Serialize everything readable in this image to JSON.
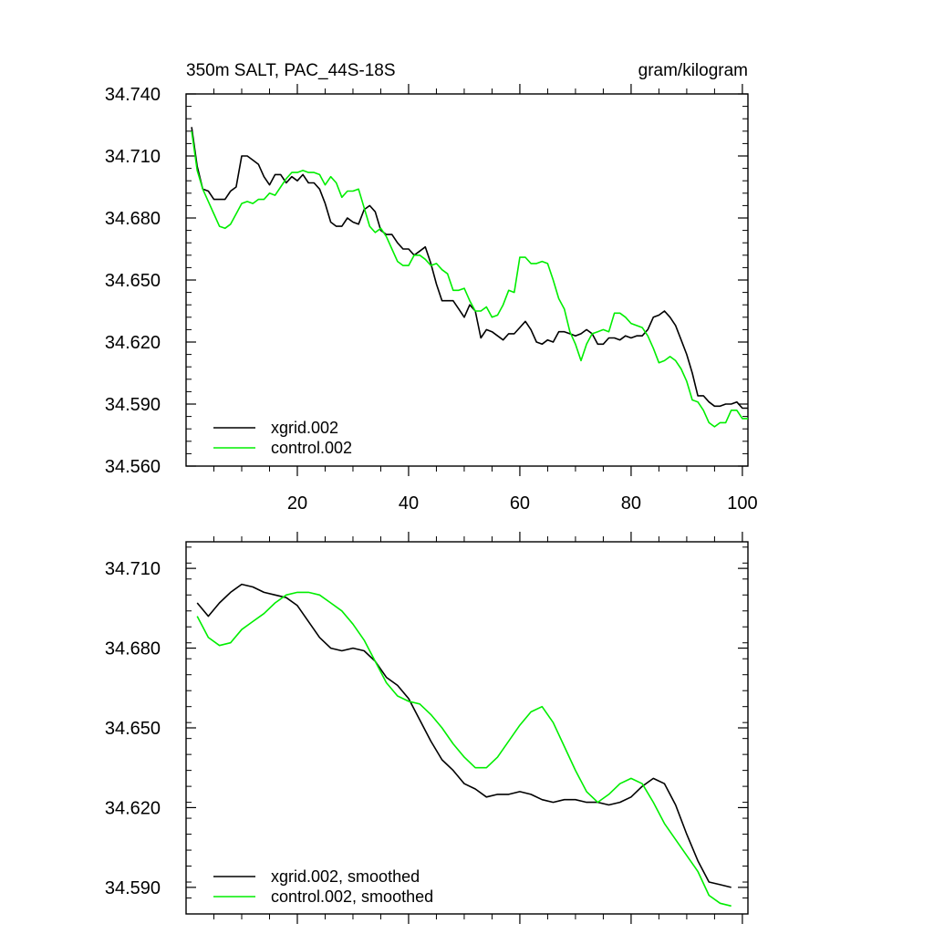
{
  "chart_data": [
    {
      "type": "line",
      "title": "350m SALT, PAC_44S-18S",
      "units": "gram/kilogram",
      "xlabel": "",
      "ylabel": "",
      "xlim": [
        0,
        101
      ],
      "ylim": [
        34.56,
        34.74
      ],
      "xticks": [
        20,
        40,
        60,
        80,
        100
      ],
      "yticks": [
        34.56,
        34.59,
        34.62,
        34.65,
        34.68,
        34.71,
        34.74
      ],
      "ytick_labels": [
        "34.560",
        "34.590",
        "34.620",
        "34.650",
        "34.680",
        "34.710",
        "34.740"
      ],
      "legend_position": "bottom-left",
      "series": [
        {
          "name": "xgrid.002",
          "color": "#000000",
          "x": [
            1,
            2,
            3,
            4,
            5,
            6,
            7,
            8,
            9,
            10,
            11,
            12,
            13,
            14,
            15,
            16,
            17,
            18,
            19,
            20,
            21,
            22,
            23,
            24,
            25,
            26,
            27,
            28,
            29,
            30,
            31,
            32,
            33,
            34,
            35,
            36,
            37,
            38,
            39,
            40,
            41,
            42,
            43,
            44,
            45,
            46,
            47,
            48,
            49,
            50,
            51,
            52,
            53,
            54,
            55,
            56,
            57,
            58,
            59,
            60,
            61,
            62,
            63,
            64,
            65,
            66,
            67,
            68,
            69,
            70,
            71,
            72,
            73,
            74,
            75,
            76,
            77,
            78,
            79,
            80,
            81,
            82,
            83,
            84,
            85,
            86,
            87,
            88,
            89,
            90,
            91,
            92,
            93,
            94,
            95,
            96,
            97,
            98,
            99,
            100,
            101
          ],
          "values": [
            34.724,
            34.705,
            34.694,
            34.693,
            34.689,
            34.689,
            34.689,
            34.693,
            34.695,
            34.71,
            34.71,
            34.708,
            34.706,
            34.7,
            34.696,
            34.701,
            34.701,
            34.697,
            34.7,
            34.698,
            34.701,
            34.697,
            34.697,
            34.694,
            34.687,
            34.678,
            34.676,
            34.676,
            34.68,
            34.678,
            34.677,
            34.684,
            34.686,
            34.683,
            34.674,
            34.672,
            34.672,
            34.668,
            34.665,
            34.665,
            34.662,
            34.664,
            34.666,
            34.658,
            34.648,
            34.64,
            34.64,
            34.64,
            34.636,
            34.632,
            34.638,
            34.635,
            34.622,
            34.626,
            34.625,
            34.623,
            34.621,
            34.624,
            34.624,
            34.627,
            34.63,
            34.626,
            34.62,
            34.619,
            34.621,
            34.62,
            34.625,
            34.625,
            34.624,
            34.623,
            34.624,
            34.626,
            34.624,
            34.619,
            34.619,
            34.622,
            34.622,
            34.621,
            34.623,
            34.622,
            34.623,
            34.623,
            34.626,
            34.632,
            34.633,
            34.635,
            34.632,
            34.628,
            34.621,
            34.614,
            34.605,
            34.594,
            34.594,
            34.591,
            34.589,
            34.589,
            34.59,
            34.59,
            34.591,
            34.588,
            34.588
          ]
        },
        {
          "name": "control.002",
          "color": "#00ee00",
          "x": [
            1,
            2,
            3,
            4,
            5,
            6,
            7,
            8,
            9,
            10,
            11,
            12,
            13,
            14,
            15,
            16,
            17,
            18,
            19,
            20,
            21,
            22,
            23,
            24,
            25,
            26,
            27,
            28,
            29,
            30,
            31,
            32,
            33,
            34,
            35,
            36,
            37,
            38,
            39,
            40,
            41,
            42,
            43,
            44,
            45,
            46,
            47,
            48,
            49,
            50,
            51,
            52,
            53,
            54,
            55,
            56,
            57,
            58,
            59,
            60,
            61,
            62,
            63,
            64,
            65,
            66,
            67,
            68,
            69,
            70,
            71,
            72,
            73,
            74,
            75,
            76,
            77,
            78,
            79,
            80,
            81,
            82,
            83,
            84,
            85,
            86,
            87,
            88,
            89,
            90,
            91,
            92,
            93,
            94,
            95,
            96,
            97,
            98,
            99,
            100,
            101
          ],
          "values": [
            34.722,
            34.703,
            34.694,
            34.688,
            34.682,
            34.676,
            34.675,
            34.677,
            34.682,
            34.687,
            34.688,
            34.687,
            34.689,
            34.689,
            34.692,
            34.691,
            34.695,
            34.699,
            34.702,
            34.702,
            34.703,
            34.702,
            34.702,
            34.701,
            34.696,
            34.7,
            34.697,
            34.69,
            34.693,
            34.693,
            34.694,
            34.685,
            34.676,
            34.673,
            34.675,
            34.671,
            34.665,
            34.659,
            34.657,
            34.657,
            34.662,
            34.662,
            34.66,
            34.657,
            34.658,
            34.655,
            34.653,
            34.645,
            34.645,
            34.646,
            34.64,
            34.635,
            34.635,
            34.637,
            34.632,
            34.633,
            34.638,
            34.645,
            34.644,
            34.661,
            34.661,
            34.658,
            34.658,
            34.659,
            34.658,
            34.65,
            34.641,
            34.636,
            34.625,
            34.619,
            34.611,
            34.619,
            34.624,
            34.625,
            34.626,
            34.625,
            34.634,
            34.634,
            34.632,
            34.629,
            34.628,
            34.627,
            34.623,
            34.617,
            34.61,
            34.611,
            34.613,
            34.611,
            34.607,
            34.601,
            34.592,
            34.591,
            34.587,
            34.581,
            34.579,
            34.581,
            34.581,
            34.587,
            34.587,
            34.583,
            34.583
          ]
        }
      ]
    },
    {
      "type": "line",
      "title": "",
      "xlabel": "",
      "ylabel": "",
      "xlim": [
        0,
        101
      ],
      "ylim": [
        34.58,
        34.72
      ],
      "xticks": [
        20,
        40,
        60,
        80,
        100
      ],
      "yticks": [
        34.59,
        34.62,
        34.65,
        34.68,
        34.71
      ],
      "ytick_labels": [
        "34.590",
        "34.620",
        "34.650",
        "34.680",
        "34.710"
      ],
      "legend_position": "bottom-left",
      "series": [
        {
          "name": "xgrid.002, smoothed",
          "color": "#000000",
          "x": [
            2,
            4,
            6,
            8,
            10,
            12,
            14,
            16,
            18,
            20,
            22,
            24,
            26,
            28,
            30,
            32,
            34,
            36,
            38,
            40,
            42,
            44,
            46,
            48,
            50,
            52,
            54,
            56,
            58,
            60,
            62,
            64,
            66,
            68,
            70,
            72,
            74,
            76,
            78,
            80,
            82,
            84,
            86,
            88,
            90,
            92,
            94,
            96,
            98
          ],
          "values": [
            34.697,
            34.692,
            34.697,
            34.701,
            34.704,
            34.703,
            34.701,
            34.7,
            34.699,
            34.696,
            34.69,
            34.684,
            34.68,
            34.679,
            34.68,
            34.679,
            34.675,
            34.669,
            34.666,
            34.661,
            34.653,
            34.645,
            34.638,
            34.634,
            34.629,
            34.627,
            34.624,
            34.625,
            34.625,
            34.626,
            34.625,
            34.623,
            34.622,
            34.623,
            34.623,
            34.622,
            34.622,
            34.621,
            34.622,
            34.624,
            34.628,
            34.631,
            34.629,
            34.621,
            34.61,
            34.6,
            34.592,
            34.591,
            34.59
          ]
        },
        {
          "name": "control.002, smoothed",
          "color": "#00ee00",
          "x": [
            2,
            4,
            6,
            8,
            10,
            12,
            14,
            16,
            18,
            20,
            22,
            24,
            26,
            28,
            30,
            32,
            34,
            36,
            38,
            40,
            42,
            44,
            46,
            48,
            50,
            52,
            54,
            56,
            58,
            60,
            62,
            64,
            66,
            68,
            70,
            72,
            74,
            76,
            78,
            80,
            82,
            84,
            86,
            88,
            90,
            92,
            94,
            96,
            98
          ],
          "values": [
            34.692,
            34.684,
            34.681,
            34.682,
            34.687,
            34.69,
            34.693,
            34.697,
            34.7,
            34.701,
            34.701,
            34.7,
            34.697,
            34.694,
            34.689,
            34.683,
            34.675,
            34.667,
            34.662,
            34.66,
            34.659,
            34.655,
            34.65,
            34.644,
            34.639,
            34.635,
            34.635,
            34.639,
            34.645,
            34.651,
            34.656,
            34.658,
            34.652,
            34.643,
            34.634,
            34.626,
            34.622,
            34.625,
            34.629,
            34.631,
            34.629,
            34.622,
            34.614,
            34.608,
            34.602,
            34.596,
            34.587,
            34.584,
            34.583
          ]
        }
      ]
    }
  ]
}
